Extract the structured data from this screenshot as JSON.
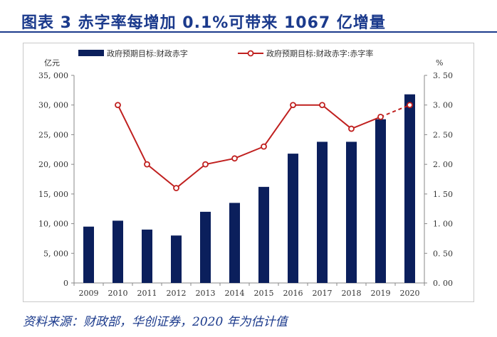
{
  "header": {
    "title": "图表 3   赤字率每增加 0.1%可带来 1067 亿增量"
  },
  "chart_data": {
    "type": "bar+line",
    "categories": [
      "2009",
      "2010",
      "2011",
      "2012",
      "2013",
      "2014",
      "2015",
      "2016",
      "2017",
      "2018",
      "2019",
      "2020"
    ],
    "series": [
      {
        "name": "政府预期目标:财政赤字",
        "type": "bar",
        "axis": "left",
        "color": "#0b1f5c",
        "values": [
          9500,
          10500,
          9000,
          8000,
          12000,
          13500,
          16200,
          21800,
          23800,
          23800,
          27600,
          31800
        ]
      },
      {
        "name": "政府预期目标:财政赤字:赤字率",
        "type": "line",
        "axis": "right",
        "color": "#c0201f",
        "values": [
          null,
          3.0,
          2.0,
          1.6,
          2.0,
          2.1,
          2.3,
          3.0,
          3.0,
          2.6,
          2.8,
          3.0
        ],
        "estimate_from_index": 10
      }
    ],
    "y_left": {
      "label": "亿元",
      "ylim": [
        0,
        35000
      ],
      "ticks": [
        0,
        5000,
        10000,
        15000,
        20000,
        25000,
        30000,
        35000
      ],
      "tick_labels": [
        "0",
        "5, 000",
        "10, 000",
        "15, 000",
        "20, 000",
        "25, 000",
        "30, 000",
        "35, 000"
      ]
    },
    "y_right": {
      "label": "%",
      "ylim": [
        0,
        3.5
      ],
      "ticks": [
        0,
        0.5,
        1.0,
        1.5,
        2.0,
        2.5,
        3.0,
        3.5
      ],
      "tick_labels": [
        "0. 00",
        "0. 50",
        "1. 00",
        "1. 50",
        "2. 00",
        "2. 50",
        "3. 00",
        "3. 50"
      ]
    },
    "legend_position": "top"
  },
  "footer": {
    "source": "资料来源：财政部，华创证券，2020 年为估计值"
  }
}
